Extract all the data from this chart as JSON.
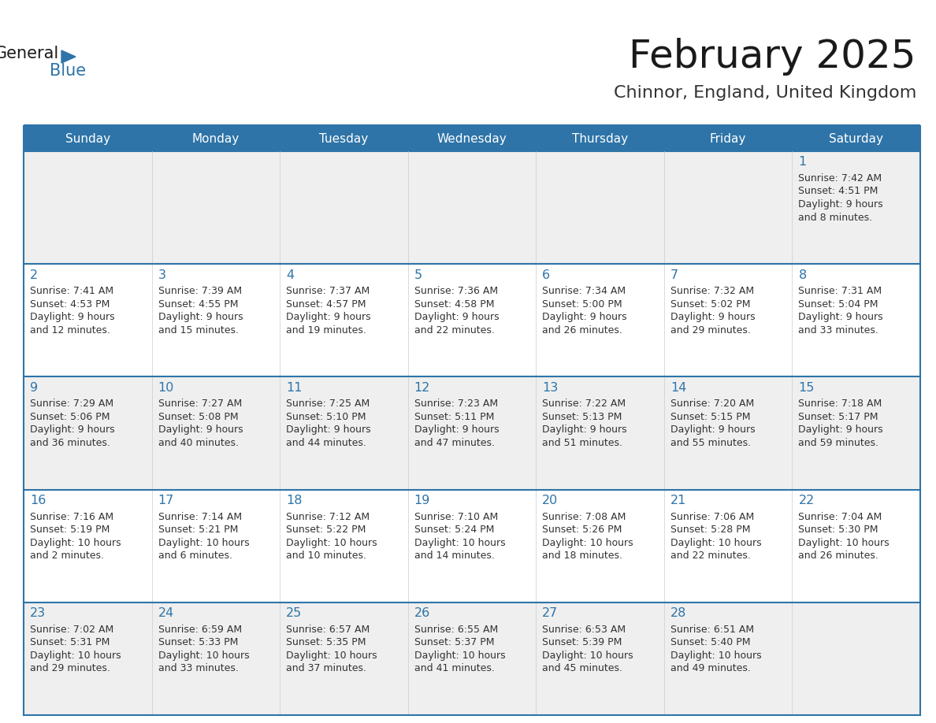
{
  "title": "February 2025",
  "subtitle": "Chinnor, England, United Kingdom",
  "days_of_week": [
    "Sunday",
    "Monday",
    "Tuesday",
    "Wednesday",
    "Thursday",
    "Friday",
    "Saturday"
  ],
  "header_bg": "#2E74A8",
  "header_text": "#FFFFFF",
  "cell_bg_light": "#EFEFEF",
  "cell_bg_white": "#FFFFFF",
  "cell_text": "#333333",
  "border_color": "#2E74A8",
  "day_num_color": "#2E74A8",
  "title_color": "#1a1a1a",
  "subtitle_color": "#333333",
  "logo_text_color": "#1a1a1a",
  "logo_blue_color": "#2E74A8",
  "calendar": [
    [
      null,
      null,
      null,
      null,
      null,
      null,
      {
        "day": 1,
        "sunrise": "7:42 AM",
        "sunset": "4:51 PM",
        "daylight": "9 hours",
        "daylight2": "and 8 minutes."
      }
    ],
    [
      {
        "day": 2,
        "sunrise": "7:41 AM",
        "sunset": "4:53 PM",
        "daylight": "9 hours",
        "daylight2": "and 12 minutes."
      },
      {
        "day": 3,
        "sunrise": "7:39 AM",
        "sunset": "4:55 PM",
        "daylight": "9 hours",
        "daylight2": "and 15 minutes."
      },
      {
        "day": 4,
        "sunrise": "7:37 AM",
        "sunset": "4:57 PM",
        "daylight": "9 hours",
        "daylight2": "and 19 minutes."
      },
      {
        "day": 5,
        "sunrise": "7:36 AM",
        "sunset": "4:58 PM",
        "daylight": "9 hours",
        "daylight2": "and 22 minutes."
      },
      {
        "day": 6,
        "sunrise": "7:34 AM",
        "sunset": "5:00 PM",
        "daylight": "9 hours",
        "daylight2": "and 26 minutes."
      },
      {
        "day": 7,
        "sunrise": "7:32 AM",
        "sunset": "5:02 PM",
        "daylight": "9 hours",
        "daylight2": "and 29 minutes."
      },
      {
        "day": 8,
        "sunrise": "7:31 AM",
        "sunset": "5:04 PM",
        "daylight": "9 hours",
        "daylight2": "and 33 minutes."
      }
    ],
    [
      {
        "day": 9,
        "sunrise": "7:29 AM",
        "sunset": "5:06 PM",
        "daylight": "9 hours",
        "daylight2": "and 36 minutes."
      },
      {
        "day": 10,
        "sunrise": "7:27 AM",
        "sunset": "5:08 PM",
        "daylight": "9 hours",
        "daylight2": "and 40 minutes."
      },
      {
        "day": 11,
        "sunrise": "7:25 AM",
        "sunset": "5:10 PM",
        "daylight": "9 hours",
        "daylight2": "and 44 minutes."
      },
      {
        "day": 12,
        "sunrise": "7:23 AM",
        "sunset": "5:11 PM",
        "daylight": "9 hours",
        "daylight2": "and 47 minutes."
      },
      {
        "day": 13,
        "sunrise": "7:22 AM",
        "sunset": "5:13 PM",
        "daylight": "9 hours",
        "daylight2": "and 51 minutes."
      },
      {
        "day": 14,
        "sunrise": "7:20 AM",
        "sunset": "5:15 PM",
        "daylight": "9 hours",
        "daylight2": "and 55 minutes."
      },
      {
        "day": 15,
        "sunrise": "7:18 AM",
        "sunset": "5:17 PM",
        "daylight": "9 hours",
        "daylight2": "and 59 minutes."
      }
    ],
    [
      {
        "day": 16,
        "sunrise": "7:16 AM",
        "sunset": "5:19 PM",
        "daylight": "10 hours",
        "daylight2": "and 2 minutes."
      },
      {
        "day": 17,
        "sunrise": "7:14 AM",
        "sunset": "5:21 PM",
        "daylight": "10 hours",
        "daylight2": "and 6 minutes."
      },
      {
        "day": 18,
        "sunrise": "7:12 AM",
        "sunset": "5:22 PM",
        "daylight": "10 hours",
        "daylight2": "and 10 minutes."
      },
      {
        "day": 19,
        "sunrise": "7:10 AM",
        "sunset": "5:24 PM",
        "daylight": "10 hours",
        "daylight2": "and 14 minutes."
      },
      {
        "day": 20,
        "sunrise": "7:08 AM",
        "sunset": "5:26 PM",
        "daylight": "10 hours",
        "daylight2": "and 18 minutes."
      },
      {
        "day": 21,
        "sunrise": "7:06 AM",
        "sunset": "5:28 PM",
        "daylight": "10 hours",
        "daylight2": "and 22 minutes."
      },
      {
        "day": 22,
        "sunrise": "7:04 AM",
        "sunset": "5:30 PM",
        "daylight": "10 hours",
        "daylight2": "and 26 minutes."
      }
    ],
    [
      {
        "day": 23,
        "sunrise": "7:02 AM",
        "sunset": "5:31 PM",
        "daylight": "10 hours",
        "daylight2": "and 29 minutes."
      },
      {
        "day": 24,
        "sunrise": "6:59 AM",
        "sunset": "5:33 PM",
        "daylight": "10 hours",
        "daylight2": "and 33 minutes."
      },
      {
        "day": 25,
        "sunrise": "6:57 AM",
        "sunset": "5:35 PM",
        "daylight": "10 hours",
        "daylight2": "and 37 minutes."
      },
      {
        "day": 26,
        "sunrise": "6:55 AM",
        "sunset": "5:37 PM",
        "daylight": "10 hours",
        "daylight2": "and 41 minutes."
      },
      {
        "day": 27,
        "sunrise": "6:53 AM",
        "sunset": "5:39 PM",
        "daylight": "10 hours",
        "daylight2": "and 45 minutes."
      },
      {
        "day": 28,
        "sunrise": "6:51 AM",
        "sunset": "5:40 PM",
        "daylight": "10 hours",
        "daylight2": "and 49 minutes."
      },
      null
    ]
  ]
}
